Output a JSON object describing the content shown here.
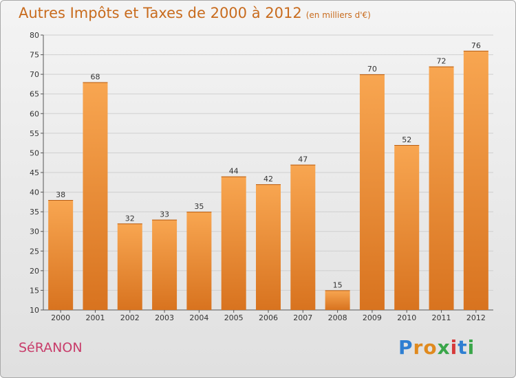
{
  "header": {
    "title": "Autres Impôts et Taxes de 2000 à 2012",
    "unit": "(en milliers d'€)"
  },
  "footer": {
    "commune": "SéRANON",
    "logo_letters": [
      "P",
      "r",
      "o",
      "x",
      "i",
      "t",
      "i"
    ],
    "logo_colors": [
      "#2f7fd2",
      "#e08a1e",
      "#e08a1e",
      "#3aa64a",
      "#d63a3a",
      "#2f7fd2",
      "#3aa64a"
    ]
  },
  "colors": {
    "bar_top": "#f8a651",
    "bar_bottom": "#d8731f",
    "grid": "#cfcfcf"
  },
  "chart_data": {
    "type": "bar",
    "title": "Autres Impôts et Taxes de 2000 à 2012",
    "xlabel": "",
    "ylabel": "",
    "ylim": [
      10,
      80
    ],
    "yticks": [
      10,
      15,
      20,
      25,
      30,
      35,
      40,
      45,
      50,
      55,
      60,
      65,
      70,
      75,
      80
    ],
    "grid": true,
    "categories": [
      "2000",
      "2001",
      "2002",
      "2003",
      "2004",
      "2005",
      "2006",
      "2007",
      "2008",
      "2009",
      "2010",
      "2011",
      "2012"
    ],
    "values": [
      38,
      68,
      32,
      33,
      35,
      44,
      42,
      47,
      15,
      70,
      52,
      72,
      76
    ]
  }
}
